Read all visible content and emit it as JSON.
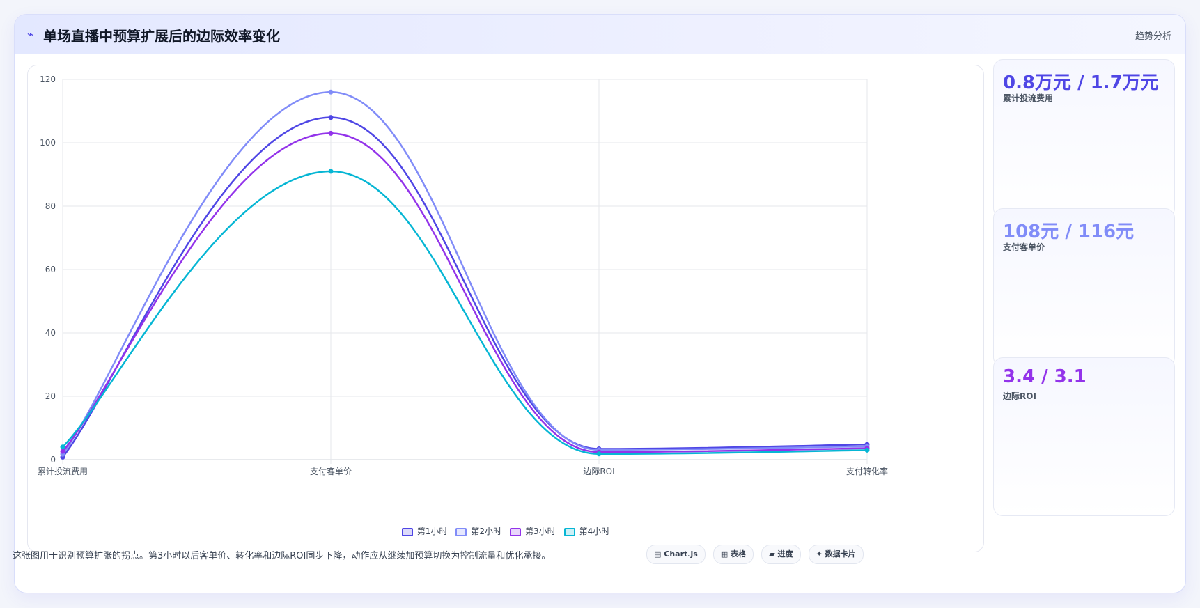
{
  "header": {
    "icon": "lightning-icon",
    "icon_glyph": "⌁",
    "title": "单场直播中预算扩展后的边际效率变化",
    "tag": "趋势分析"
  },
  "chart_data": {
    "type": "line",
    "categories": [
      "累计投流费用",
      "支付客单价",
      "边际ROI",
      "支付转化率"
    ],
    "ylim": [
      0,
      120
    ],
    "yticks": [
      0,
      20,
      40,
      60,
      80,
      100,
      120
    ],
    "grid": true,
    "legend": "bottom",
    "series": [
      {
        "name": "第1小时",
        "color": "#4f46e5",
        "values": [
          0.8,
          108,
          3.4,
          4.8
        ]
      },
      {
        "name": "第2小时",
        "color": "#818cf8",
        "values": [
          1.7,
          116,
          3.1,
          4.2
        ]
      },
      {
        "name": "第3小时",
        "color": "#9333ea",
        "values": [
          2.6,
          103,
          2.4,
          3.6
        ]
      },
      {
        "name": "第4小时",
        "color": "#06b6d4",
        "values": [
          4.0,
          91,
          1.8,
          3.0
        ]
      }
    ]
  },
  "metrics": [
    {
      "value": "0.8万元 / 1.7万元",
      "label": "累计投流费用",
      "color": "#4f46e5"
    },
    {
      "value": "108元 / 116元",
      "label": "支付客单价",
      "color": "#818cf8"
    },
    {
      "value": "3.4 / 3.1",
      "label": "边际ROI",
      "color": "#9333ea"
    }
  ],
  "footer": {
    "note": "这张图用于识别预算扩张的拐点。第3小时以后客单价、转化率和边际ROI同步下降，动作应从继续加预算切换为控制流量和优化承接。",
    "chips": [
      {
        "icon": "chart-icon",
        "glyph": "▤",
        "label": "Chart.js"
      },
      {
        "icon": "table-icon",
        "glyph": "▦",
        "label": "表格"
      },
      {
        "icon": "progress-icon",
        "glyph": "▰",
        "label": "进度"
      },
      {
        "icon": "sparkle-icon",
        "glyph": "✦",
        "label": "数据卡片"
      }
    ]
  }
}
